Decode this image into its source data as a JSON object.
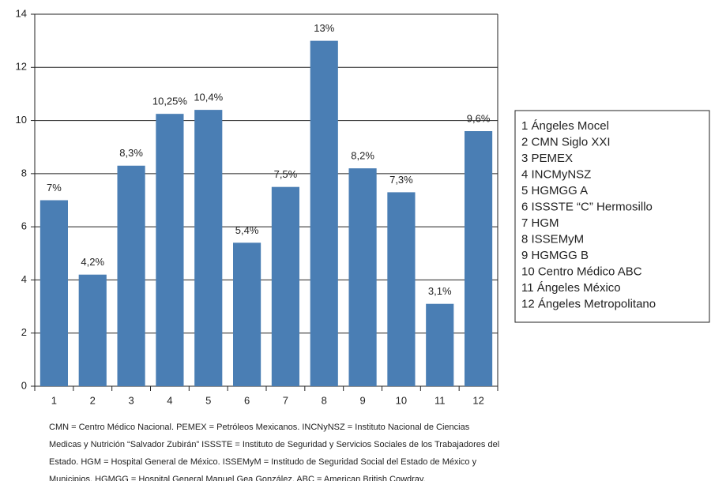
{
  "chart_data": {
    "type": "bar",
    "categories": [
      "1",
      "2",
      "3",
      "4",
      "5",
      "6",
      "7",
      "8",
      "9",
      "10",
      "11",
      "12"
    ],
    "values": [
      7,
      4.2,
      8.3,
      10.25,
      10.4,
      5.4,
      7.5,
      13,
      8.2,
      7.3,
      3.1,
      9.6
    ],
    "value_labels": [
      "7%",
      "4,2%",
      "8,3%",
      "10,25%",
      "10,4%",
      "5,4%",
      "7,5%",
      "13%",
      "8,2%",
      "7,3%",
      "3,1%",
      "9,6%"
    ],
    "color": "#4a7eb4",
    "ylim": [
      0,
      14
    ],
    "yticks": [
      0,
      2,
      4,
      6,
      8,
      10,
      12,
      14
    ],
    "grid": true,
    "legend_items": [
      "1 Ángeles Mocel",
      "2 CMN Siglo XXI",
      "3 PEMEX",
      "4 INCMyNSZ",
      "5 HGMGG A",
      "6 ISSSTE “C” Hermosillo",
      "7 HGM",
      "8 ISSEMyM",
      "9 HGMGG B",
      "10 Centro Médico ABC",
      "11 Ángeles México",
      "12 Ángeles Metropolitano"
    ],
    "footnote": [
      "CMN = Centro Médico Nacional.  PEMEX = Petróleos Mexicanos.  INCNyNSZ = Instituto Nacional de Ciencias",
      "Medicas y Nutrición “Salvador Zubirán” ISSSTE = Instituto de Seguridad y Servicios Sociales de los Trabajadores del",
      "Estado. HGM = Hospital General de México. ISSEMyM = Institudo de Seguridad Social del Estado de México y",
      "Municipios. HGMGG = Hospital General Manuel Gea González. ABC = American British Cowdray."
    ]
  }
}
